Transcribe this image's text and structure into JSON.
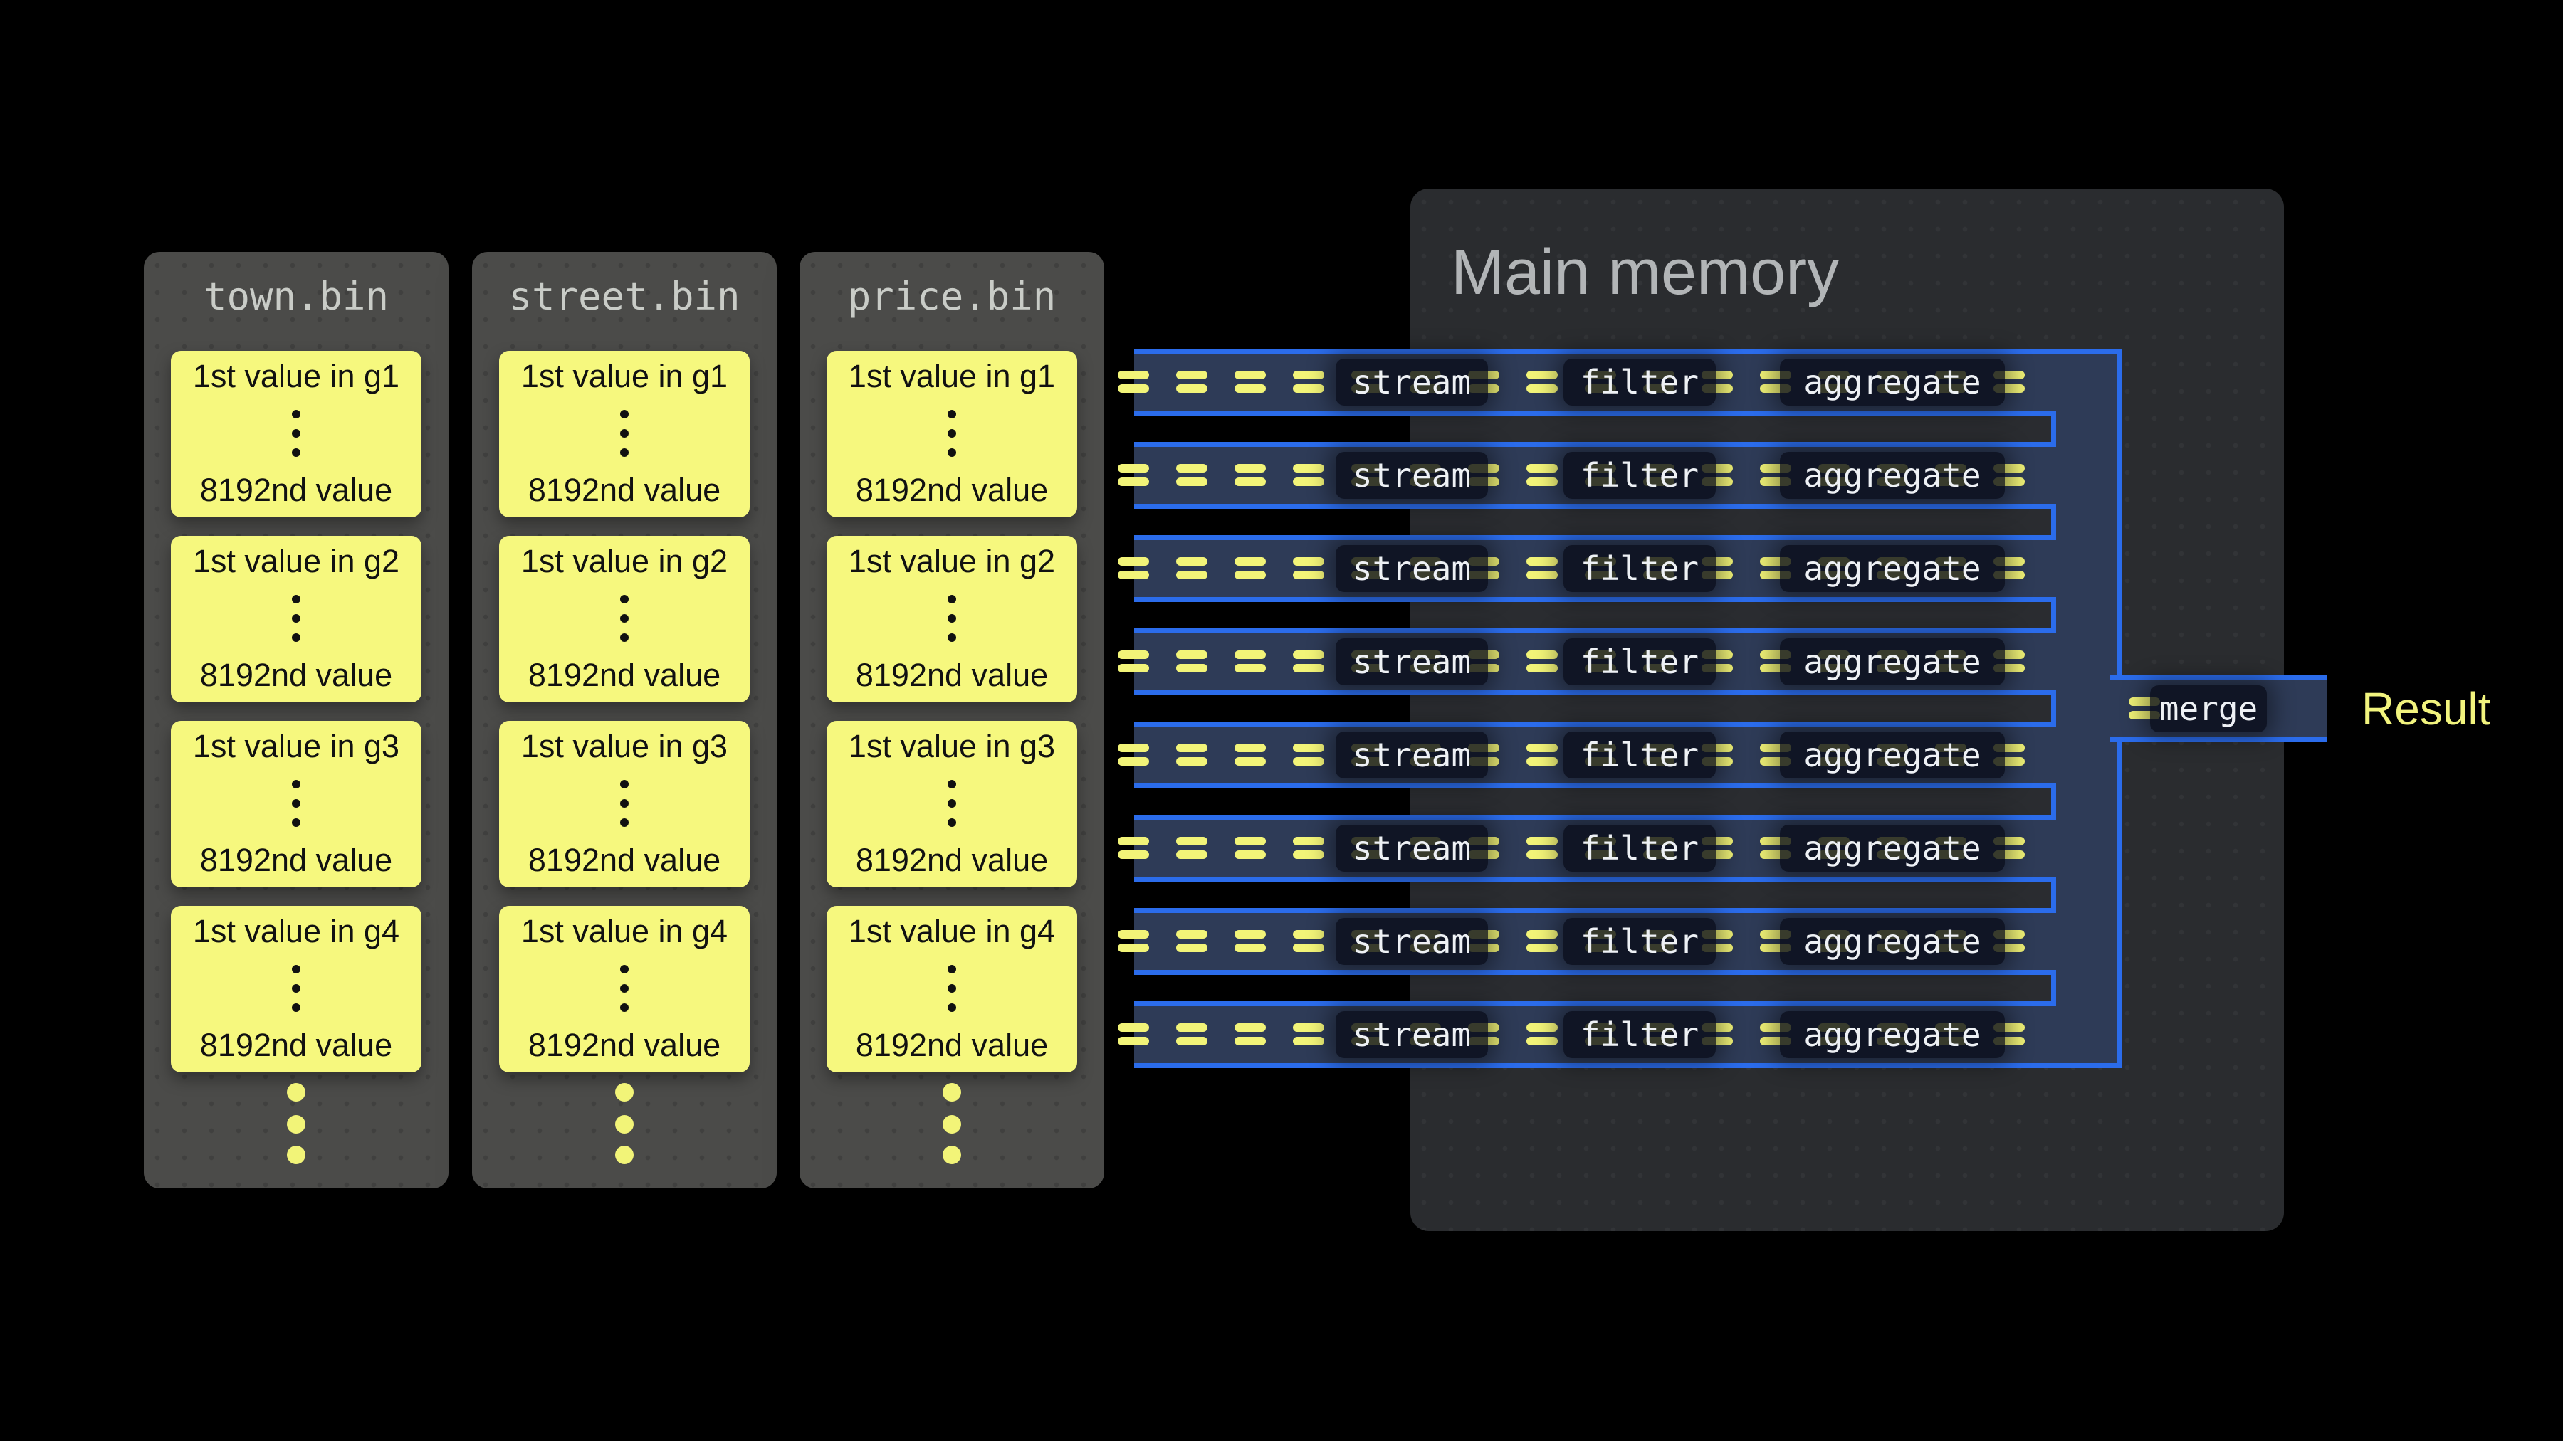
{
  "files": [
    {
      "name": "town.bin",
      "groups": [
        {
          "start": "1st value in g1",
          "end": "8192nd value"
        },
        {
          "start": "1st value in g2",
          "end": "8192nd value"
        },
        {
          "start": "1st value in g3",
          "end": "8192nd value"
        },
        {
          "start": "1st value in g4",
          "end": "8192nd value"
        }
      ]
    },
    {
      "name": "street.bin",
      "groups": [
        {
          "start": "1st value in g1",
          "end": "8192nd value"
        },
        {
          "start": "1st value in g2",
          "end": "8192nd value"
        },
        {
          "start": "1st value in g3",
          "end": "8192nd value"
        },
        {
          "start": "1st value in g4",
          "end": "8192nd value"
        }
      ]
    },
    {
      "name": "price.bin",
      "groups": [
        {
          "start": "1st value in g1",
          "end": "8192nd value"
        },
        {
          "start": "1st value in g2",
          "end": "8192nd value"
        },
        {
          "start": "1st value in g3",
          "end": "8192nd value"
        },
        {
          "start": "1st value in g4",
          "end": "8192nd value"
        }
      ]
    }
  ],
  "memory": {
    "title": "Main memory"
  },
  "pipeline": {
    "row_count": 8,
    "stages": [
      "stream",
      "filter",
      "aggregate"
    ],
    "dashes_per_row": 16,
    "merge_label": "merge",
    "result_label": "Result"
  },
  "colors": {
    "background": "#000000",
    "file_panel": "#4b4b49",
    "file_header_text": "#c9ccc7",
    "block_yellow": "#f6f87e",
    "dash_yellow": "#f2f478",
    "block_text": "#111111",
    "memory_panel": "#2a2c2f",
    "memory_title_text": "#b2b5b7",
    "pipeline_fill": "#2e3b57",
    "pipeline_stroke": "#2b6ceb",
    "hole_gray": "#2a2c30",
    "stage_box_bg": "rgba(9,13,25,0.8)",
    "stage_box_text": "#eef1f5",
    "result_text": "#f2f47e"
  }
}
